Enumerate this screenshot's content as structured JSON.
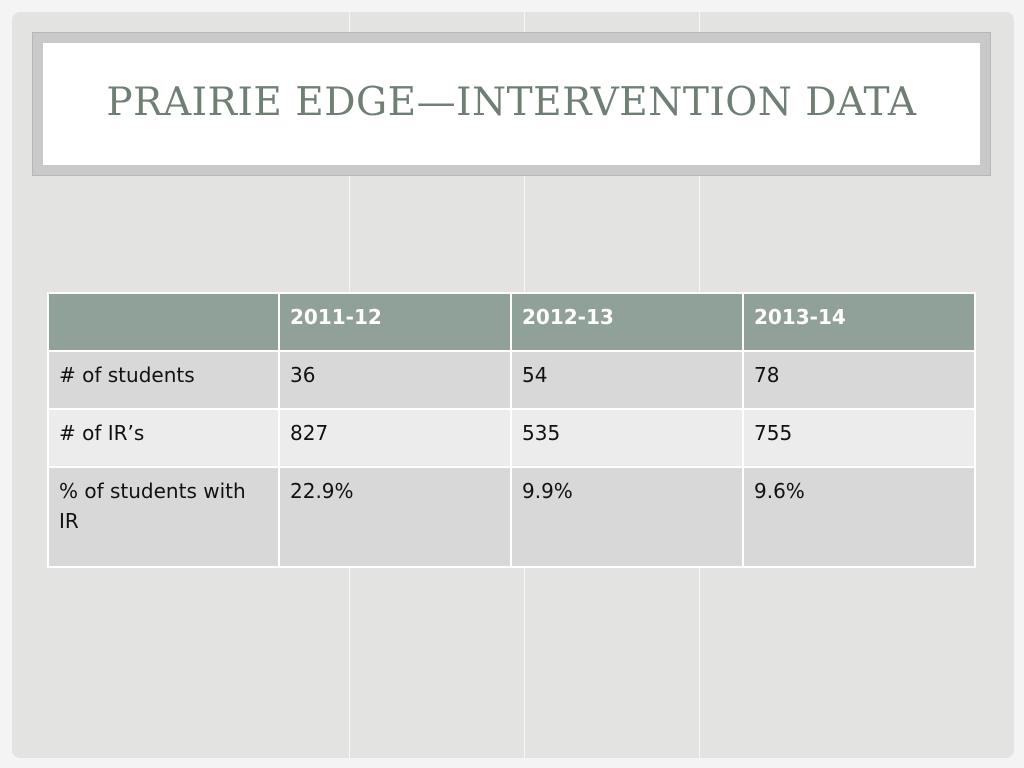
{
  "title": "PRAIRIE EDGE—INTERVENTION DATA",
  "table": {
    "headers": [
      "",
      "2011-12",
      "2012-13",
      "2013-14"
    ],
    "rows": [
      [
        "# of students",
        "36",
        "54",
        "78"
      ],
      [
        "# of IR’s",
        "827",
        "535",
        "755"
      ],
      [
        "% of students with IR",
        "22.9%",
        "9.9%",
        "9.6%"
      ]
    ]
  }
}
